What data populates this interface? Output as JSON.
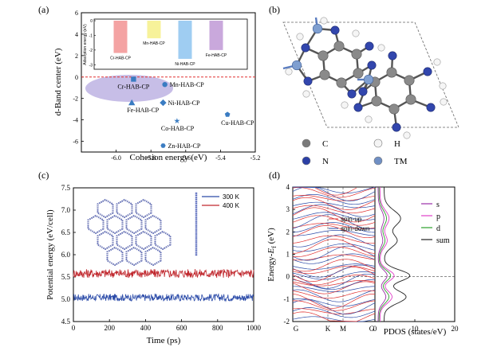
{
  "panels": {
    "a": "(a)",
    "b": "(b)",
    "c": "(c)",
    "d": "(d)"
  },
  "chart_data": [
    {
      "id": "a",
      "type": "scatter",
      "xlabel": "Cohesion energy (eV)",
      "ylabel": "d-Band center (eV)",
      "xlim": [
        -6.2,
        -5.2
      ],
      "ylim": [
        -7,
        6
      ],
      "xticks": [
        "-6.0",
        "-5.8",
        "-5.6",
        "-5.4",
        "-5.2"
      ],
      "yticks": [
        "-6",
        "-4",
        "-2",
        "0",
        "2",
        "4",
        "6"
      ],
      "dashed_line_y": 0,
      "points": [
        {
          "label": "Cr-HAB-CP",
          "x": -5.9,
          "y": -0.2,
          "marker": "square"
        },
        {
          "label": "Mn-HAB-CP",
          "x": -5.72,
          "y": -0.7,
          "marker": "circle"
        },
        {
          "label": "Ni-HAB-CP",
          "x": -5.73,
          "y": -2.4,
          "marker": "diamond"
        },
        {
          "label": "Fe-HAB-CP",
          "x": -5.91,
          "y": -2.4,
          "marker": "triangle"
        },
        {
          "label": "Co-HAB-CP",
          "x": -5.65,
          "y": -4.1,
          "marker": "star"
        },
        {
          "label": "Zn-HAB-CP",
          "x": -5.73,
          "y": -6.4,
          "marker": "hexagon"
        },
        {
          "label": "Cu-HAB-CP",
          "x": -5.36,
          "y": -3.5,
          "marker": "pentagon"
        }
      ],
      "inset": {
        "type": "bar",
        "ylabel": "Adsorption energy (eV)",
        "yticks": [
          "0",
          "-1",
          "-2",
          "-3"
        ],
        "categories": [
          "Cr-HAB-CP",
          "Mn-HAB-CP",
          "Ni-HAB-CP",
          "Fe-HAB-CP"
        ],
        "values": [
          -2.2,
          -1.2,
          -2.6,
          -2.0
        ],
        "colors": [
          "#f4a3a3",
          "#f7f29a",
          "#9fcdf2",
          "#c9a8dc"
        ]
      }
    },
    {
      "id": "c",
      "type": "line",
      "xlabel": "Time (ps)",
      "ylabel": "Potential energy (eV/cell)",
      "xlim": [
        0,
        1000
      ],
      "ylim": [
        4.5,
        7.5
      ],
      "xticks": [
        "0",
        "200",
        "400",
        "600",
        "800",
        "1000"
      ],
      "yticks": [
        "4.5",
        "5.0",
        "5.5",
        "6.0",
        "6.5",
        "7.0",
        "7.5"
      ],
      "series": [
        {
          "name": "300 K",
          "mean": 5.04,
          "amplitude": 0.08,
          "color": "#2a4aa8"
        },
        {
          "name": "400 K",
          "mean": 5.58,
          "amplitude": 0.1,
          "color": "#c0272d"
        }
      ]
    },
    {
      "id": "d",
      "type": "line",
      "ylabel": "Energy-E_f (eV)",
      "ylabel_main": "Energy-",
      "ylabel_sub": "f",
      "ylabel_tail": " (eV)",
      "ylabel_E": "E",
      "ylim": [
        -2,
        4
      ],
      "yticks": [
        "-2",
        "-1",
        "0",
        "1",
        "2",
        "3",
        "4"
      ],
      "kpoints": [
        "G",
        "K",
        "M",
        "G"
      ],
      "band_legend": [
        "spin-up",
        "spin-down"
      ],
      "pdos": {
        "xlabel": "PDOS (states/eV)",
        "xticks": [
          "0",
          "10",
          "20"
        ],
        "series": [
          {
            "name": "s",
            "color": "#9b2fa8"
          },
          {
            "name": "p",
            "color": "#e040c8"
          },
          {
            "name": "d",
            "color": "#2aa02a"
          },
          {
            "name": "sum",
            "color": "#222222"
          }
        ]
      }
    }
  ],
  "structure_legend": [
    {
      "symbol": "C",
      "color": "#7a7a7a"
    },
    {
      "symbol": "H",
      "color": "#f4f4f4"
    },
    {
      "symbol": "N",
      "color": "#2b3fa5"
    },
    {
      "symbol": "TM",
      "color": "#6f8fc4"
    }
  ]
}
